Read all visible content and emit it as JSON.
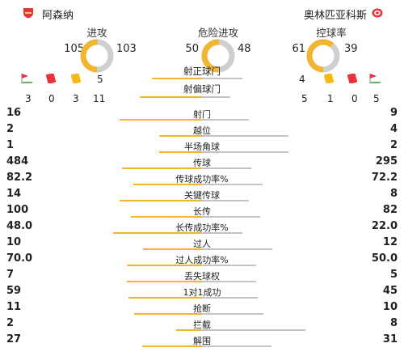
{
  "header": {
    "home_name": "阿森纳",
    "away_name": "奥林匹亚科斯"
  },
  "colors": {
    "home": "#f2b531",
    "away": "#c4c4c4",
    "donut_away": "#cfcfcf",
    "yellow_card": "#f5b916",
    "red_card": "#e8323c",
    "logo_red": "#e8323c"
  },
  "donuts": [
    {
      "title": "进攻",
      "home": "105",
      "away": "103",
      "home_value": 105,
      "away_value": 103
    },
    {
      "title": "危险进攻",
      "home": "50",
      "away": "48",
      "home_value": 50,
      "away_value": 48
    },
    {
      "title": "控球率",
      "home": "61",
      "away": "39",
      "home_value": 61,
      "away_value": 39
    }
  ],
  "shots_on": {
    "label": "射正球门",
    "home": "5",
    "away": "4",
    "home_value": 5,
    "away_value": 4
  },
  "shots_off": {
    "label": "射偏球门",
    "home": "11",
    "away": "5",
    "home_value": 11,
    "away_value": 5
  },
  "home_counts": {
    "corners": "3",
    "red": "0",
    "yellow": "3"
  },
  "away_counts": {
    "yellow": "1",
    "red": "0",
    "corners": "5"
  },
  "icons": [
    "corner-flag-icon",
    "red-card-icon",
    "yellow-card-icon"
  ],
  "stats": [
    {
      "label": "射门",
      "home": "16",
      "away": "9",
      "home_value": 16,
      "away_value": 9
    },
    {
      "label": "越位",
      "home": "2",
      "away": "4",
      "home_value": 2,
      "away_value": 4
    },
    {
      "label": "半场角球",
      "home": "1",
      "away": "2",
      "home_value": 1,
      "away_value": 2
    },
    {
      "label": "传球",
      "home": "484",
      "away": "295",
      "home_value": 484,
      "away_value": 295
    },
    {
      "label": "传球成功率%",
      "home": "82.2",
      "away": "72.2",
      "home_value": 82.2,
      "away_value": 72.2
    },
    {
      "label": "关键传球",
      "home": "14",
      "away": "8",
      "home_value": 14,
      "away_value": 8
    },
    {
      "label": "长传",
      "home": "100",
      "away": "82",
      "home_value": 100,
      "away_value": 82
    },
    {
      "label": "长传成功率%",
      "home": "48.0",
      "away": "22.0",
      "home_value": 48.0,
      "away_value": 22.0
    },
    {
      "label": "过人",
      "home": "10",
      "away": "12",
      "home_value": 10,
      "away_value": 12
    },
    {
      "label": "过人成功率%",
      "home": "70.0",
      "away": "50.0",
      "home_value": 70.0,
      "away_value": 50.0
    },
    {
      "label": "丢失球权",
      "home": "7",
      "away": "5",
      "home_value": 7,
      "away_value": 5
    },
    {
      "label": "1对1成功",
      "home": "59",
      "away": "45",
      "home_value": 59,
      "away_value": 45
    },
    {
      "label": "抢断",
      "home": "11",
      "away": "10",
      "home_value": 11,
      "away_value": 10
    },
    {
      "label": "拦截",
      "home": "2",
      "away": "8",
      "home_value": 2,
      "away_value": 8
    },
    {
      "label": "解围",
      "home": "27",
      "away": "31",
      "home_value": 27,
      "away_value": 31
    }
  ]
}
